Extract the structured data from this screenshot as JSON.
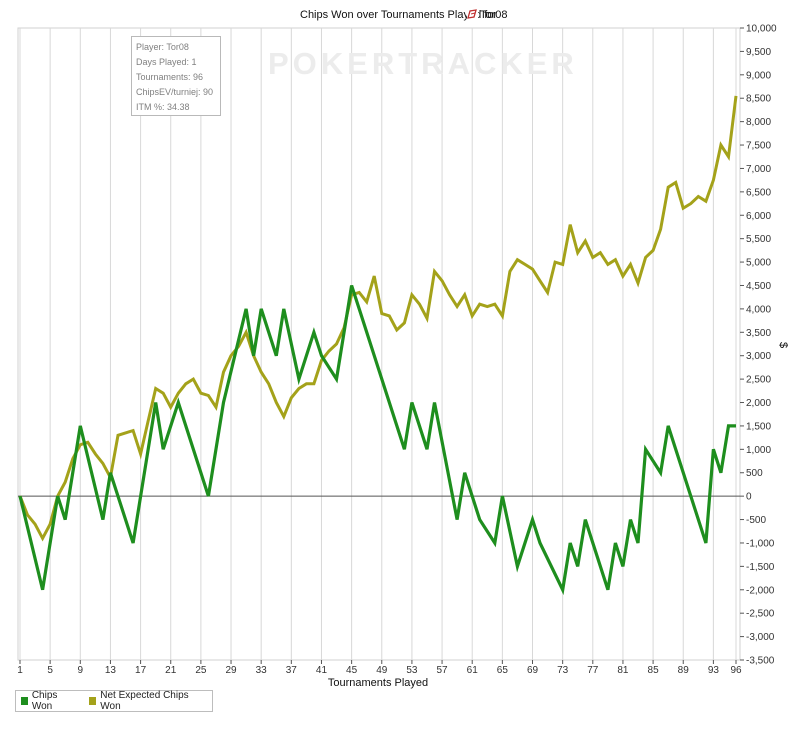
{
  "title_prefix": "Chips Won over Tournaments Played for",
  "title_player": "Tor08",
  "watermark": "POKERTRACKER",
  "info": {
    "player": "Player: Tor08",
    "days": "Days Played: 1",
    "tournaments": "Tournaments: 96",
    "chipsev": "ChipsEV/turniej: 90",
    "itm": "ITM %: 34.38"
  },
  "colors": {
    "chips_won": "#1e8e1e",
    "net_expected": "#a4a21a",
    "zero_line": "#555555",
    "grid": "#d8d8d8"
  },
  "chart_data": {
    "type": "line",
    "xlabel": "Tournaments Played",
    "ylabel": "$",
    "xlim": [
      1,
      96
    ],
    "ylim": [
      -3500,
      10000
    ],
    "x_ticks": [
      1,
      5,
      9,
      13,
      17,
      21,
      25,
      29,
      33,
      37,
      41,
      45,
      49,
      53,
      57,
      61,
      65,
      69,
      73,
      77,
      81,
      85,
      89,
      93,
      96
    ],
    "y_ticks": [
      -3500,
      -3000,
      -2500,
      -2000,
      -1500,
      -1000,
      -500,
      0,
      500,
      1000,
      1500,
      2000,
      2500,
      3000,
      3500,
      4000,
      4500,
      5000,
      5500,
      6000,
      6500,
      7000,
      7500,
      8000,
      8500,
      9000,
      9500,
      10000
    ],
    "y_tick_labels": [
      "-3,500",
      "-3,000",
      "-2,500",
      "-2,000",
      "-1,500",
      "-1,000",
      "-500",
      "0",
      "500",
      "1,000",
      "1,500",
      "2,000",
      "2,500",
      "3,000",
      "3,500",
      "4,000",
      "4,500",
      "5,000",
      "5,500",
      "6,000",
      "6,500",
      "7,000",
      "7,500",
      "8,000",
      "8,500",
      "9,000",
      "9,500",
      "10,000"
    ],
    "grid": "vertical",
    "legend_position": "bottom-left",
    "series": [
      {
        "name": "Chips Won",
        "x": [
          1,
          4,
          6,
          7,
          9,
          12,
          13,
          16,
          19,
          20,
          22,
          26,
          28,
          31,
          32,
          33,
          35,
          36,
          38,
          40,
          41,
          43,
          45,
          46,
          52,
          53,
          55,
          56,
          59,
          60,
          62,
          64,
          65,
          67,
          69,
          70,
          73,
          74,
          75,
          76,
          79,
          80,
          81,
          82,
          83,
          84,
          86,
          87,
          88,
          92,
          93,
          94,
          95,
          96
        ],
        "y": [
          0,
          -2000,
          0,
          -500,
          1500,
          -500,
          500,
          -1000,
          2000,
          1000,
          2000,
          0,
          2000,
          4000,
          3000,
          4000,
          3000,
          4000,
          2500,
          3500,
          3000,
          2500,
          4500,
          4000,
          1000,
          2000,
          1000,
          2000,
          -500,
          500,
          -500,
          -1000,
          0,
          -1500,
          -500,
          -1000,
          -2000,
          -1000,
          -1500,
          -500,
          -2000,
          -1000,
          -1500,
          -500,
          -1000,
          1000,
          500,
          1500,
          1000,
          -1000,
          1000,
          500,
          1500,
          1500
        ]
      },
      {
        "name": "Net Expected Chips Won",
        "x": [
          1,
          2,
          3,
          4,
          5,
          6,
          7,
          8,
          9,
          10,
          11,
          12,
          13,
          14,
          15,
          16,
          17,
          18,
          19,
          20,
          21,
          22,
          23,
          24,
          25,
          26,
          27,
          28,
          29,
          30,
          31,
          32,
          33,
          34,
          35,
          36,
          37,
          38,
          39,
          40,
          41,
          42,
          43,
          44,
          45,
          46,
          47,
          48,
          49,
          50,
          51,
          52,
          53,
          54,
          55,
          56,
          57,
          58,
          59,
          60,
          61,
          62,
          63,
          64,
          65,
          66,
          67,
          68,
          69,
          70,
          71,
          72,
          73,
          74,
          75,
          76,
          77,
          78,
          79,
          80,
          81,
          82,
          83,
          84,
          85,
          86,
          87,
          88,
          89,
          90,
          91,
          92,
          93,
          94,
          95,
          96
        ],
        "y": [
          0,
          -400,
          -600,
          -900,
          -600,
          0,
          300,
          800,
          1100,
          1150,
          900,
          700,
          400,
          1300,
          1350,
          1400,
          900,
          1600,
          2300,
          2200,
          1900,
          2200,
          2400,
          2500,
          2200,
          2150,
          1900,
          2650,
          3000,
          3200,
          3500,
          3000,
          2650,
          2400,
          2000,
          1700,
          2100,
          2300,
          2400,
          2400,
          2900,
          3100,
          3250,
          3600,
          4300,
          4350,
          4150,
          4700,
          3900,
          3850,
          3550,
          3700,
          4300,
          4100,
          3800,
          4800,
          4600,
          4300,
          4050,
          4300,
          3850,
          4100,
          4050,
          4100,
          3850,
          4800,
          5050,
          4950,
          4850,
          4600,
          4350,
          5000,
          4950,
          5800,
          5200,
          5450,
          5100,
          5200,
          4950,
          5050,
          4700,
          4950,
          4550,
          5100,
          5250,
          5700,
          6600,
          6700,
          6150,
          6250,
          6400,
          6300,
          6750,
          7500,
          7250,
          8550
        ]
      }
    ]
  }
}
